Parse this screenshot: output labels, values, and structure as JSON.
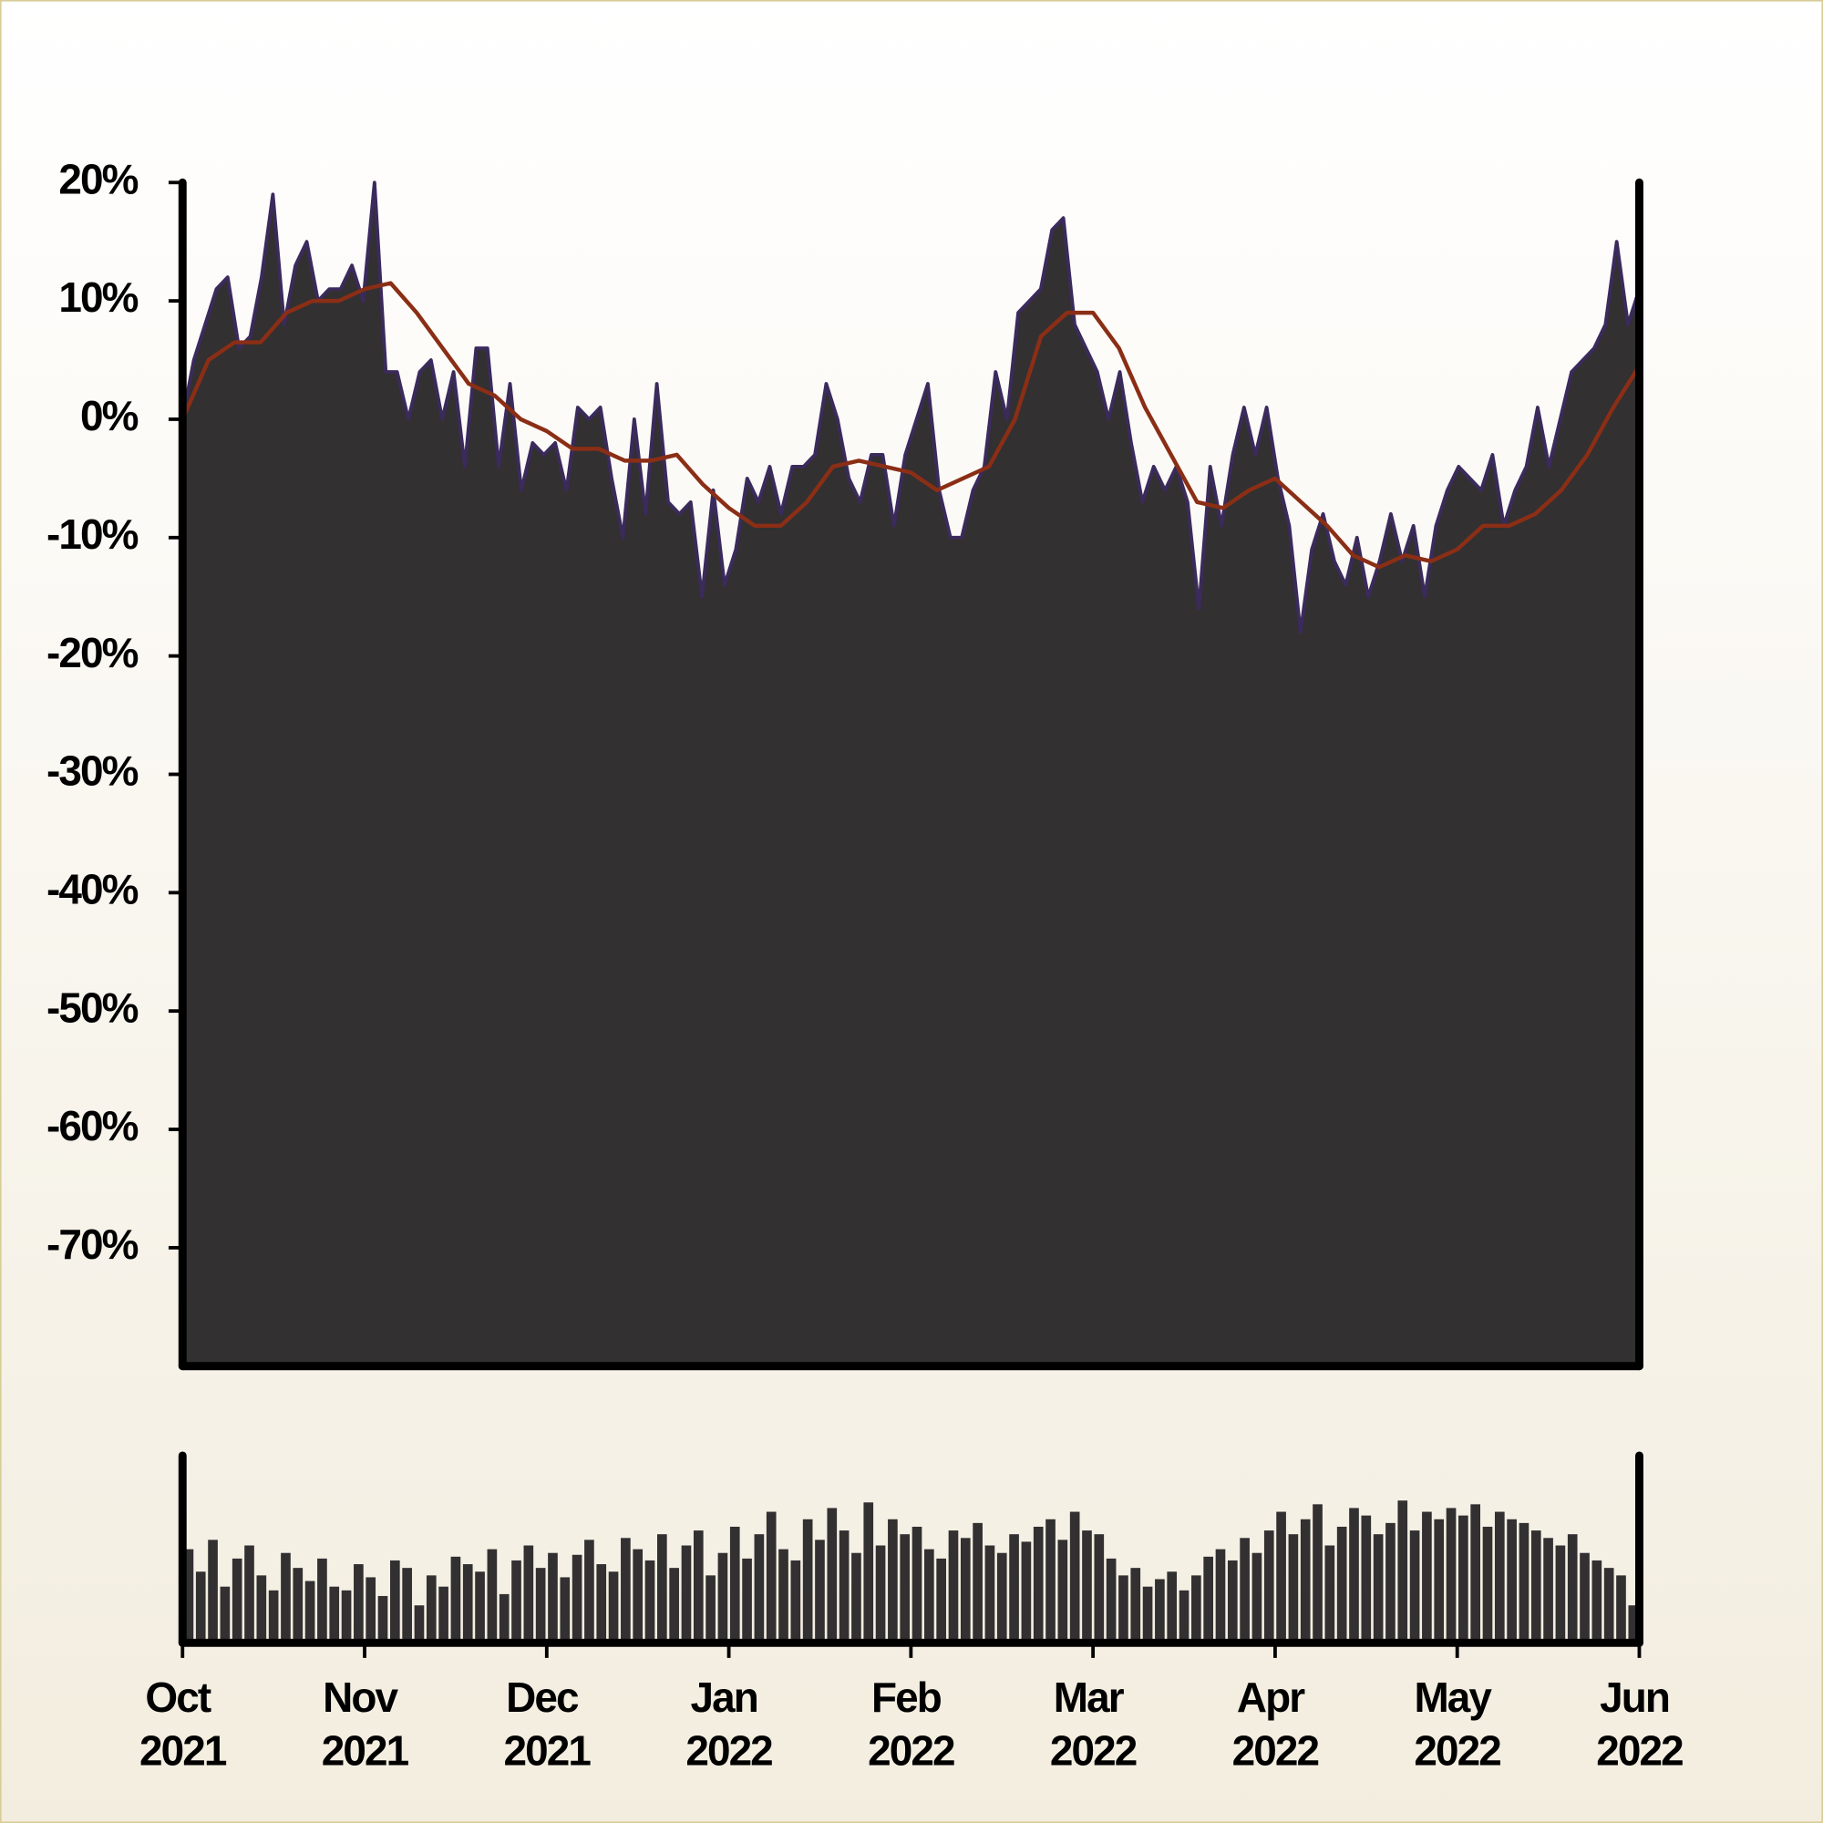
{
  "chart_data": [
    {
      "type": "area",
      "xlim": [
        "2021-10",
        "2022-06"
      ],
      "ylim": [
        -80,
        20
      ],
      "yticks": [
        {
          "value": 20,
          "label": "20%"
        },
        {
          "value": 10,
          "label": "10%"
        },
        {
          "value": 0,
          "label": "0%"
        },
        {
          "value": -10,
          "label": "-10%"
        },
        {
          "value": -20,
          "label": "-20%"
        },
        {
          "value": -30,
          "label": "-30%"
        },
        {
          "value": -40,
          "label": "-40%"
        },
        {
          "value": -50,
          "label": "-50%"
        },
        {
          "value": -60,
          "label": "-60%"
        },
        {
          "value": -70,
          "label": "-70%"
        }
      ],
      "color": "#323031",
      "line_color": "#3b2a5c",
      "values": [
        0,
        5,
        8,
        11,
        12,
        6,
        7,
        12,
        19,
        8,
        13,
        15,
        10,
        11,
        11,
        13,
        10,
        20,
        4,
        4,
        0,
        4,
        5,
        0,
        4,
        -4,
        6,
        6,
        -4,
        3,
        -6,
        -2,
        -3,
        -2,
        -6,
        1,
        0,
        1,
        -5,
        -10,
        0,
        -8,
        3,
        -7,
        -8,
        -7,
        -15,
        -6,
        -14,
        -11,
        -5,
        -7,
        -4,
        -8,
        -4,
        -4,
        -3,
        3,
        0,
        -5,
        -7,
        -3,
        -3,
        -9,
        -3,
        0,
        3,
        -6,
        -10,
        -10,
        -6,
        -4,
        4,
        0,
        9,
        10,
        11,
        16,
        17,
        8,
        6,
        4,
        0,
        4,
        -2,
        -7,
        -4,
        -6,
        -4,
        -7,
        -16,
        -4,
        -9,
        -3,
        1,
        -3,
        1,
        -5,
        -9,
        -18,
        -11,
        -8,
        -12,
        -14,
        -10,
        -15,
        -12,
        -8,
        -12,
        -9,
        -15,
        -9,
        -6,
        -4,
        -5,
        -6,
        -3,
        -9,
        -6,
        -4,
        1,
        -4,
        0,
        4,
        5,
        6,
        8,
        15,
        8,
        11
      ],
      "moving_average": {
        "color": "#8b2e16",
        "values": [
          0,
          5,
          6.5,
          6.5,
          9,
          10,
          10,
          11,
          11.5,
          9,
          6,
          3,
          2,
          0,
          -1,
          -2.5,
          -2.5,
          -3.5,
          -3.5,
          -3,
          -5.5,
          -7.5,
          -9,
          -9,
          -7,
          -4,
          -3.5,
          -4,
          -4.5,
          -6,
          -5,
          -4,
          0,
          7,
          9,
          9,
          6,
          1,
          -3,
          -7,
          -7.5,
          -6,
          -5,
          -7,
          -9,
          -11.5,
          -12.5,
          -11.5,
          -12,
          -11,
          -9,
          -9,
          -8,
          -6,
          -3,
          1,
          4.5
        ]
      }
    },
    {
      "type": "bar",
      "xlim": [
        "2021-10",
        "2022-06"
      ],
      "ylim": [
        0,
        100
      ],
      "color": "#323031",
      "xticks": [
        {
          "value": "2021-10",
          "label": "Oct 2021"
        },
        {
          "value": "2021-11",
          "label": "Nov 2021"
        },
        {
          "value": "2021-12",
          "label": "Dec 2021"
        },
        {
          "value": "2022-01",
          "label": "Jan 2022"
        },
        {
          "value": "2022-02",
          "label": "Feb 2022"
        },
        {
          "value": "2022-03",
          "label": "Mar 2022"
        },
        {
          "value": "2022-04",
          "label": "Apr 2022"
        },
        {
          "value": "2022-05",
          "label": "May 2022"
        },
        {
          "value": "2022-06",
          "label": "Jun 2022"
        }
      ],
      "values": [
        50,
        38,
        55,
        30,
        45,
        52,
        36,
        28,
        48,
        40,
        33,
        45,
        30,
        28,
        42,
        35,
        25,
        44,
        40,
        20,
        36,
        30,
        46,
        42,
        38,
        50,
        26,
        44,
        52,
        40,
        48,
        35,
        47,
        55,
        42,
        38,
        56,
        50,
        44,
        58,
        40,
        52,
        60,
        36,
        48,
        62,
        45,
        58,
        70,
        50,
        44,
        66,
        55,
        72,
        60,
        48,
        75,
        52,
        66,
        58,
        62,
        50,
        45,
        60,
        56,
        64,
        52,
        48,
        58,
        54,
        62,
        66,
        55,
        70,
        60,
        58,
        45,
        36,
        40,
        30,
        34,
        38,
        28,
        36,
        46,
        50,
        44,
        56,
        48,
        60,
        70,
        58,
        66,
        74,
        52,
        62,
        72,
        68,
        58,
        64,
        76,
        60,
        70,
        66,
        72,
        68,
        74,
        62,
        70,
        66,
        64,
        60,
        56,
        52,
        58,
        48,
        44,
        40,
        36,
        20
      ]
    }
  ]
}
